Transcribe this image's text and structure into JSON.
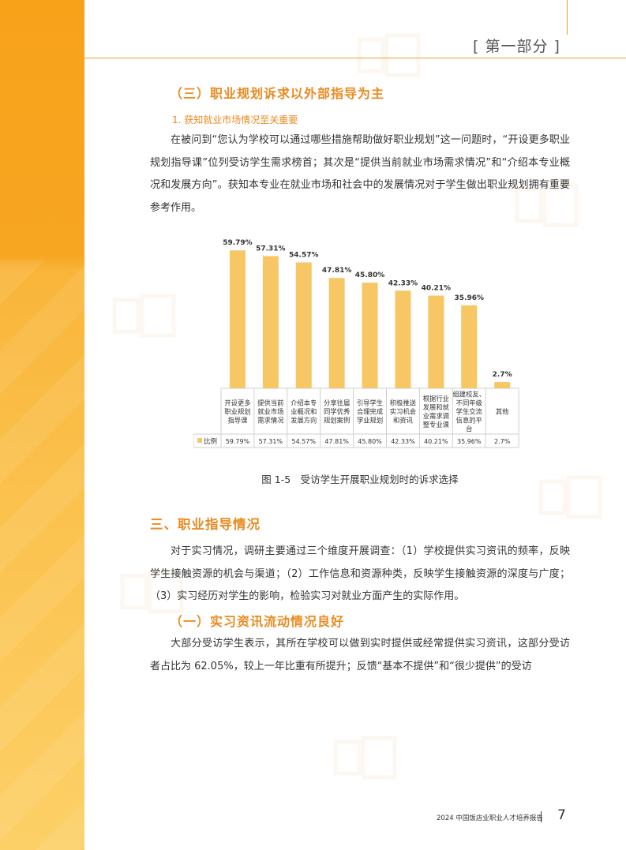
{
  "header": {
    "section_tag": "[ 第一部分 ]"
  },
  "section_3_sub": {
    "heading": "（三）职业规划诉求以外部指导为主",
    "subheading": "1. 获知就业市场情况至关重要",
    "paragraph": "在被问到“您认为学校可以通过哪些措施帮助做好职业规划”这一问题时，“开设更多职业规划指导课”位列受访学生需求榜首；其次是“提供当前就业市场需求情况”和“介绍本专业概况和发展方向”。获知本专业在就业市场和社会中的发展情况对于学生做出职业规划拥有重要参考作用。"
  },
  "chart_data": {
    "type": "bar",
    "categories": [
      "开设更多职业规划指导课",
      "提供当前就业市场需求情况",
      "介绍本专业概况和发展方向",
      "分享往届同学优秀规划案例",
      "引导学生合理完成学业规划",
      "积极推送实习机会和资讯",
      "根据行业发展和就业需求调整专业课",
      "组建校友、不同年级学生交流信息的平台",
      "其他"
    ],
    "category_lines": [
      [
        "开设更多",
        "职业规划",
        "指导课"
      ],
      [
        "提供当前",
        "就业市场",
        "需求情况"
      ],
      [
        "介绍本专",
        "业概况和",
        "发展方向"
      ],
      [
        "分享往届",
        "同学优秀",
        "规划案例"
      ],
      [
        "引导学生",
        "合理完成",
        "学业规划"
      ],
      [
        "积极推送",
        "实习机会",
        "和资讯"
      ],
      [
        "根据行业",
        "发展和就",
        "业需求调",
        "整专业课"
      ],
      [
        "组建校友、",
        "不同年级",
        "学生交流",
        "信息的平",
        "台"
      ],
      [
        "其他"
      ]
    ],
    "series": [
      {
        "name": "比例",
        "values": [
          59.79,
          57.31,
          54.57,
          47.81,
          45.8,
          42.33,
          40.21,
          35.96,
          2.7
        ]
      }
    ],
    "data_labels": [
      "59.79%",
      "57.31%",
      "54.57%",
      "47.81%",
      "45.80%",
      "42.33%",
      "40.21%",
      "35.96%",
      "2.7%"
    ],
    "ylim": [
      0,
      65
    ],
    "color": "#f7c665",
    "caption": "图 1-5　受访学生开展职业规划时的诉求选择"
  },
  "section_3": {
    "heading": "三、职业指导情况",
    "paragraph": "对于实习情况，调研主要通过三个维度开展调查：（1）学校提供实习资讯的频率，反映学生接触资源的机会与渠道；（2）工作信息和资源种类，反映学生接触资源的深度与广度；（3）实习经历对学生的影响，检验实习对就业方面产生的实际作用。"
  },
  "section_3_1": {
    "heading": "（一）实习资讯流动情况良好",
    "paragraph": "大部分受访学生表示，其所在学校可以做到实时提供或经常提供实习资讯，这部分受访者占比为 62.05%，较上一年比重有所提升；反馈“基本不提供”和“很少提供”的受访"
  },
  "footer": {
    "report_title": "2024 中国饭店业职业人才培养报告",
    "page_number": "7"
  }
}
